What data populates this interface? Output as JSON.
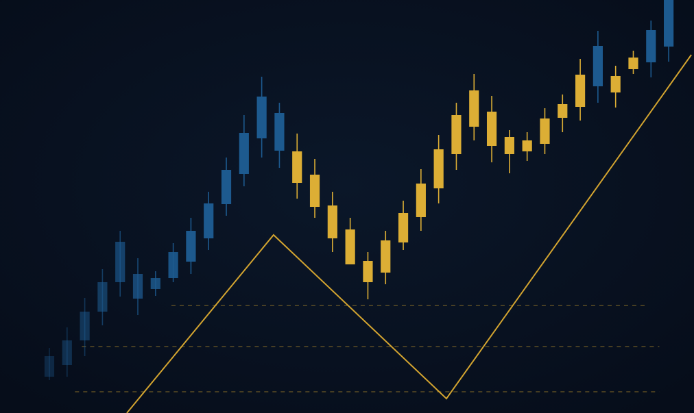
{
  "chart_data": {
    "type": "candlestick",
    "x": [
      0,
      1,
      2,
      3,
      4,
      5,
      6,
      7,
      8,
      9,
      10,
      11,
      12,
      13,
      14,
      15,
      16,
      17,
      18,
      19,
      20,
      21,
      22,
      23,
      24,
      25,
      26,
      27,
      28,
      29,
      30,
      31,
      32,
      33,
      34,
      35
    ],
    "open": [
      53,
      70,
      106,
      148,
      191,
      203,
      181,
      197,
      221,
      255,
      305,
      349,
      401,
      438,
      382,
      348,
      303,
      268,
      222,
      205,
      249,
      286,
      328,
      378,
      418,
      440,
      403,
      382,
      393,
      431,
      447,
      477,
      492,
      502,
      512,
      535
    ],
    "high": [
      95,
      125,
      168,
      210,
      266,
      226,
      207,
      248,
      285,
      323,
      373,
      435,
      491,
      453,
      408,
      371,
      323,
      285,
      235,
      266,
      310,
      356,
      406,
      453,
      495,
      463,
      413,
      410,
      445,
      465,
      517,
      558,
      507,
      529,
      573,
      603
    ],
    "low": [
      48,
      53,
      83,
      128,
      170,
      143,
      171,
      191,
      203,
      238,
      288,
      331,
      373,
      358,
      313,
      285,
      235,
      217,
      166,
      188,
      238,
      266,
      306,
      355,
      398,
      366,
      350,
      368,
      378,
      410,
      427,
      453,
      446,
      495,
      490,
      513
    ],
    "close": [
      83,
      106,
      148,
      191,
      250,
      167,
      197,
      235,
      266,
      306,
      355,
      409,
      462,
      383,
      336,
      301,
      255,
      217,
      191,
      252,
      292,
      335,
      385,
      435,
      471,
      390,
      378,
      398,
      430,
      451,
      494,
      536,
      468,
      519,
      559,
      603
    ],
    "colors": [
      "#1d5a8f",
      "#1d5a8f",
      "#1d5a8f",
      "#1d5a8f",
      "#1d5a8f",
      "#1d5a8f",
      "#1d5a8f",
      "#1d5a8f",
      "#1d5a8f",
      "#1d5a8f",
      "#1d5a8f",
      "#1d5a8f",
      "#1d5a8f",
      "#1d5a8f",
      "#dcae35",
      "#dcae35",
      "#dcae35",
      "#dcae35",
      "#dcae35",
      "#dcae35",
      "#dcae35",
      "#dcae35",
      "#dcae35",
      "#dcae35",
      "#dcae35",
      "#dcae35",
      "#dcae35",
      "#dcae35",
      "#dcae35",
      "#dcae35",
      "#dcae35",
      "#1d5a8f",
      "#dcae35",
      "#dcae35",
      "#1d5a8f",
      "#1d5a8f"
    ],
    "trend_line": {
      "x": [
        4.38,
        12.67,
        22.44,
        36.28
      ],
      "values": [
        0,
        260,
        21,
        523
      ],
      "color": "#d4a530"
    },
    "levels": [
      157,
      97,
      31
    ],
    "level_color": "#b08a2a",
    "xlim": [
      -2.79,
      36.43
    ],
    "ylim": [
      0,
      603
    ]
  }
}
